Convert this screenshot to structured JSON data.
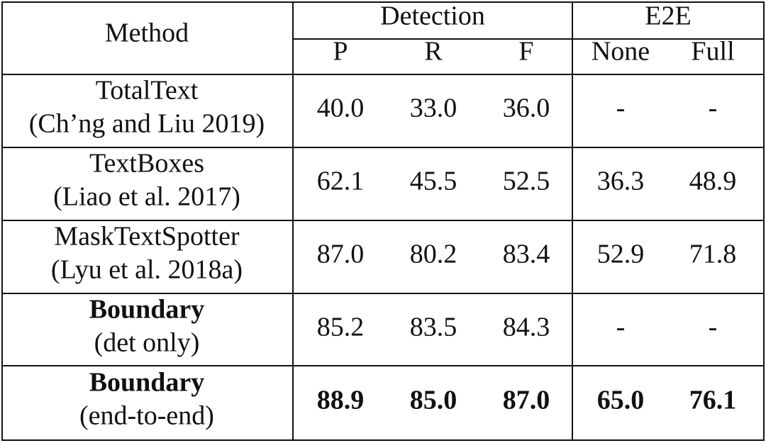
{
  "table": {
    "header": {
      "method": "Method",
      "groups": [
        "Detection",
        "E2E"
      ],
      "columns": [
        "P",
        "R",
        "F",
        "None",
        "Full"
      ]
    },
    "rows": [
      {
        "method": "TotalText",
        "citation": "(Ch’ng and Liu 2019)",
        "values": [
          "40.0",
          "33.0",
          "36.0",
          "-",
          "-"
        ]
      },
      {
        "method": "TextBoxes",
        "citation": "(Liao et al. 2017)",
        "values": [
          "62.1",
          "45.5",
          "52.5",
          "36.3",
          "48.9"
        ]
      },
      {
        "method": "MaskTextSpotter",
        "citation": "(Lyu et al. 2018a)",
        "values": [
          "87.0",
          "80.2",
          "83.4",
          "52.9",
          "71.8"
        ]
      },
      {
        "method": "Boundary",
        "citation": "(det only)",
        "values": [
          "85.2",
          "83.5",
          "84.3",
          "-",
          "-"
        ]
      },
      {
        "method": "Boundary",
        "citation": "(end-to-end)",
        "values": [
          "88.9",
          "85.0",
          "87.0",
          "65.0",
          "76.1"
        ]
      }
    ]
  }
}
